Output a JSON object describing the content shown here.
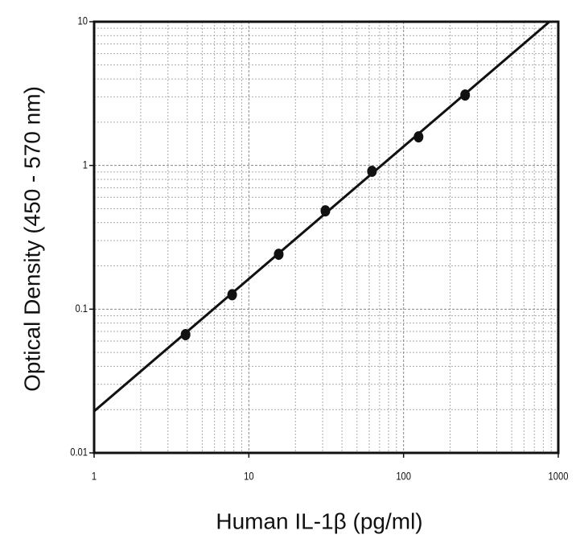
{
  "chart_data": {
    "type": "scatter",
    "x_label": "Human IL-1β (pg/ml)",
    "y_label": "Optical Density (450 - 570 nm)",
    "x": [
      3.9,
      7.8,
      15.6,
      31.25,
      62.5,
      125,
      250
    ],
    "values": [
      0.0665,
      0.126,
      0.241,
      0.483,
      0.91,
      1.58,
      3.09
    ],
    "color": "#111111",
    "fit_line": {
      "x": [
        1,
        877
      ],
      "values": [
        0.0195,
        10
      ],
      "color": "#111111"
    },
    "xlim": [
      1,
      1000
    ],
    "ylim": [
      0.01,
      10
    ],
    "xticks": [
      1,
      10,
      100,
      1000
    ],
    "yticks": [
      0.01,
      0.1,
      1,
      10
    ],
    "xscale": "log",
    "yscale": "log",
    "grid": true
  }
}
